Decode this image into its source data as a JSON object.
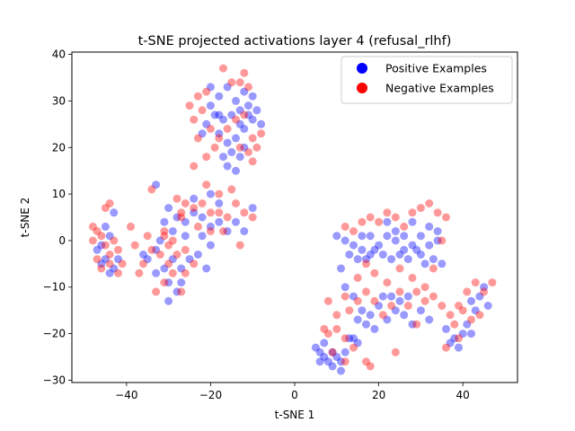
{
  "chart_data": {
    "type": "scatter",
    "title": "t-SNE projected activations layer 4 (refusal_rlhf)",
    "xlabel": "t-SNE 1",
    "ylabel": "t-SNE 2",
    "xlim": [
      -53,
      53
    ],
    "ylim": [
      -30.5,
      40.5
    ],
    "xticks": [
      -40,
      -20,
      0,
      20,
      40
    ],
    "yticks": [
      -30,
      -20,
      -10,
      0,
      10,
      20,
      30,
      40
    ],
    "grid": false,
    "legend": "top-right",
    "point_alpha": 0.4,
    "series": [
      {
        "name": "Positive Examples",
        "color": "#0000ff",
        "points": [
          [
            -20,
            33
          ],
          [
            -18,
            31
          ],
          [
            -16,
            33
          ],
          [
            -14,
            30
          ],
          [
            -12,
            32
          ],
          [
            -10,
            31
          ],
          [
            -9,
            28
          ],
          [
            -11,
            27
          ],
          [
            -13,
            28
          ],
          [
            -15,
            27
          ],
          [
            -17,
            26
          ],
          [
            -19,
            27
          ],
          [
            -21,
            25
          ],
          [
            -22,
            23
          ],
          [
            -18,
            23
          ],
          [
            -16,
            21
          ],
          [
            -14,
            22
          ],
          [
            -12,
            24
          ],
          [
            -10,
            26
          ],
          [
            -8,
            25
          ],
          [
            -15,
            19
          ],
          [
            -13,
            18
          ],
          [
            -17,
            18
          ],
          [
            -12,
            20
          ],
          [
            -16,
            16
          ],
          [
            -14,
            15
          ],
          [
            -20,
            29
          ],
          [
            -18,
            27
          ],
          [
            -11,
            29
          ],
          [
            -13,
            25
          ],
          [
            -30,
            7
          ],
          [
            -28,
            5
          ],
          [
            -26,
            4
          ],
          [
            -24,
            6
          ],
          [
            -22,
            5
          ],
          [
            -20,
            3
          ],
          [
            -18,
            4
          ],
          [
            -16,
            2
          ],
          [
            -14,
            4
          ],
          [
            -12,
            2
          ],
          [
            -22,
            1
          ],
          [
            -20,
            -1
          ],
          [
            -26,
            1
          ],
          [
            -29,
            2
          ],
          [
            -31,
            4
          ],
          [
            -18,
            8
          ],
          [
            -24,
            9
          ],
          [
            -20,
            10
          ],
          [
            -10,
            7
          ],
          [
            -33,
            12
          ],
          [
            -44,
            1
          ],
          [
            -46,
            -1
          ],
          [
            -45,
            -4
          ],
          [
            -43,
            -6
          ],
          [
            -47,
            -2
          ],
          [
            -44,
            -7
          ],
          [
            -42,
            -4
          ],
          [
            -45,
            3
          ],
          [
            -43,
            6
          ],
          [
            -46,
            -5
          ],
          [
            -33,
            -2
          ],
          [
            -35,
            -4
          ],
          [
            -31,
            -6
          ],
          [
            -29,
            -4
          ],
          [
            -27,
            -6
          ],
          [
            -25,
            -4
          ],
          [
            -30,
            -9
          ],
          [
            -28,
            -11
          ],
          [
            -30,
            -13
          ],
          [
            -33,
            -7
          ],
          [
            -36,
            -3
          ],
          [
            -32,
            0
          ],
          [
            -21,
            -6
          ],
          [
            -23,
            -3
          ],
          [
            -27,
            -9
          ],
          [
            10,
            1
          ],
          [
            12,
            0
          ],
          [
            14,
            -1
          ],
          [
            16,
            -2
          ],
          [
            18,
            -3
          ],
          [
            20,
            -1
          ],
          [
            22,
            1
          ],
          [
            24,
            0
          ],
          [
            26,
            -2
          ],
          [
            28,
            -1
          ],
          [
            30,
            -3
          ],
          [
            32,
            -1
          ],
          [
            34,
            0
          ],
          [
            13,
            -3
          ],
          [
            15,
            -4
          ],
          [
            17,
            -4
          ],
          [
            19,
            -2
          ],
          [
            21,
            -3
          ],
          [
            23,
            -4
          ],
          [
            25,
            -3
          ],
          [
            27,
            -4
          ],
          [
            29,
            -2
          ],
          [
            31,
            -5
          ],
          [
            33,
            -4
          ],
          [
            35,
            -5
          ],
          [
            16,
            1
          ],
          [
            18,
            1
          ],
          [
            24,
            2
          ],
          [
            26,
            1
          ],
          [
            30,
            1
          ],
          [
            32,
            3
          ],
          [
            34,
            2
          ],
          [
            28,
            4
          ],
          [
            22,
            4
          ],
          [
            11,
            -6
          ],
          [
            12,
            -10
          ],
          [
            14,
            -12
          ],
          [
            16,
            -15
          ],
          [
            18,
            -16
          ],
          [
            20,
            -14
          ],
          [
            22,
            -17
          ],
          [
            24,
            -15
          ],
          [
            26,
            -16
          ],
          [
            28,
            -18
          ],
          [
            30,
            -15
          ],
          [
            32,
            -17
          ],
          [
            15,
            -17
          ],
          [
            17,
            -18
          ],
          [
            19,
            -19
          ],
          [
            21,
            -12
          ],
          [
            23,
            -12
          ],
          [
            25,
            -13
          ],
          [
            27,
            -12
          ],
          [
            36,
            -19
          ],
          [
            38,
            -21
          ],
          [
            40,
            -20
          ],
          [
            42,
            -20
          ],
          [
            37,
            -22
          ],
          [
            39,
            -23
          ],
          [
            41,
            -18
          ],
          [
            43,
            -15
          ],
          [
            44,
            -12
          ],
          [
            45,
            -10
          ],
          [
            42,
            -13
          ],
          [
            46,
            -14
          ],
          [
            5,
            -23
          ],
          [
            6,
            -24
          ],
          [
            7,
            -25
          ],
          [
            8,
            -26
          ],
          [
            9,
            -27
          ],
          [
            10,
            -25
          ],
          [
            11,
            -26
          ],
          [
            12,
            -24
          ],
          [
            7,
            -22
          ],
          [
            6,
            -26
          ],
          [
            9,
            -24
          ],
          [
            11,
            -28
          ],
          [
            13,
            -21
          ],
          [
            15,
            -22
          ],
          [
            14,
            -21
          ]
        ]
      },
      {
        "name": "Negative Examples",
        "color": "#ff0000",
        "points": [
          [
            -23,
            31
          ],
          [
            -21,
            32
          ],
          [
            -17,
            37
          ],
          [
            -15,
            34
          ],
          [
            -13,
            34
          ],
          [
            -11,
            33
          ],
          [
            -22,
            28
          ],
          [
            -24,
            26
          ],
          [
            -20,
            24
          ],
          [
            -18,
            22
          ],
          [
            -16,
            24
          ],
          [
            -14,
            26
          ],
          [
            -12,
            27
          ],
          [
            -10,
            22
          ],
          [
            -9,
            20
          ],
          [
            -11,
            19
          ],
          [
            -13,
            20
          ],
          [
            -19,
            20
          ],
          [
            -21,
            18
          ],
          [
            -23,
            22
          ],
          [
            -24,
            16
          ],
          [
            -25,
            29
          ],
          [
            -12,
            36
          ],
          [
            -8,
            23
          ],
          [
            -10,
            17
          ],
          [
            -28,
            9
          ],
          [
            -26,
            8
          ],
          [
            -24,
            7
          ],
          [
            -22,
            8
          ],
          [
            -20,
            6
          ],
          [
            -18,
            6
          ],
          [
            -16,
            5
          ],
          [
            -14,
            8
          ],
          [
            -12,
            6
          ],
          [
            -10,
            5
          ],
          [
            -20,
            2
          ],
          [
            -17,
            2
          ],
          [
            -13,
            -1
          ],
          [
            -23,
            3
          ],
          [
            -27,
            5
          ],
          [
            -21,
            12
          ],
          [
            -18,
            10
          ],
          [
            -15,
            11
          ],
          [
            -27,
            6
          ],
          [
            -31,
            2
          ],
          [
            -47,
            2
          ],
          [
            -48,
            0
          ],
          [
            -46,
            1
          ],
          [
            -45,
            -1
          ],
          [
            -44,
            -3
          ],
          [
            -42,
            -2
          ],
          [
            -47,
            -4
          ],
          [
            -46,
            -6
          ],
          [
            -44,
            -5
          ],
          [
            -42,
            -7
          ],
          [
            -41,
            -5
          ],
          [
            -43,
            0
          ],
          [
            -45,
            7
          ],
          [
            -44,
            8
          ],
          [
            -48,
            3
          ],
          [
            -36,
            -5
          ],
          [
            -34,
            -2
          ],
          [
            -32,
            -3
          ],
          [
            -30,
            -1
          ],
          [
            -28,
            -3
          ],
          [
            -26,
            -2
          ],
          [
            -29,
            -7
          ],
          [
            -31,
            -9
          ],
          [
            -33,
            -11
          ],
          [
            -27,
            -11
          ],
          [
            -29,
            0
          ],
          [
            -31,
            1
          ],
          [
            -35,
            1
          ],
          [
            -24,
            -5
          ],
          [
            -26,
            -7
          ],
          [
            -34,
            11
          ],
          [
            -38,
            -1
          ],
          [
            -39,
            3
          ],
          [
            -37,
            -7
          ],
          [
            -30,
            -5
          ],
          [
            12,
            3
          ],
          [
            14,
            2
          ],
          [
            16,
            4
          ],
          [
            18,
            5
          ],
          [
            20,
            4
          ],
          [
            22,
            6
          ],
          [
            24,
            5
          ],
          [
            26,
            3
          ],
          [
            28,
            6
          ],
          [
            30,
            7
          ],
          [
            32,
            8
          ],
          [
            34,
            6
          ],
          [
            36,
            5
          ],
          [
            35,
            0
          ],
          [
            33,
            -6
          ],
          [
            28,
            -8
          ],
          [
            25,
            -6
          ],
          [
            22,
            -9
          ],
          [
            19,
            -7
          ],
          [
            17,
            -5
          ],
          [
            15,
            -8
          ],
          [
            12,
            -12
          ],
          [
            13,
            -15
          ],
          [
            15,
            -13
          ],
          [
            17,
            -11
          ],
          [
            19,
            -13
          ],
          [
            21,
            -16
          ],
          [
            23,
            -14
          ],
          [
            25,
            -11
          ],
          [
            27,
            -14
          ],
          [
            29,
            -11
          ],
          [
            31,
            -13
          ],
          [
            33,
            -12
          ],
          [
            35,
            -14
          ],
          [
            37,
            -16
          ],
          [
            39,
            -14
          ],
          [
            41,
            -11
          ],
          [
            43,
            -9
          ],
          [
            45,
            -11
          ],
          [
            47,
            -9
          ],
          [
            44,
            -16
          ],
          [
            42,
            -17
          ],
          [
            40,
            -15
          ],
          [
            38,
            -18
          ],
          [
            36,
            -23
          ],
          [
            39,
            -21
          ],
          [
            8,
            -20
          ],
          [
            10,
            -19
          ],
          [
            12,
            -21
          ],
          [
            14,
            -23
          ],
          [
            12,
            -26
          ],
          [
            9,
            -24
          ],
          [
            7,
            -19
          ],
          [
            10,
            -16
          ],
          [
            8,
            -13
          ],
          [
            24,
            -24
          ],
          [
            18,
            -27
          ],
          [
            17,
            -26
          ],
          [
            29,
            -18
          ],
          [
            31,
            -10
          ]
        ]
      }
    ]
  }
}
